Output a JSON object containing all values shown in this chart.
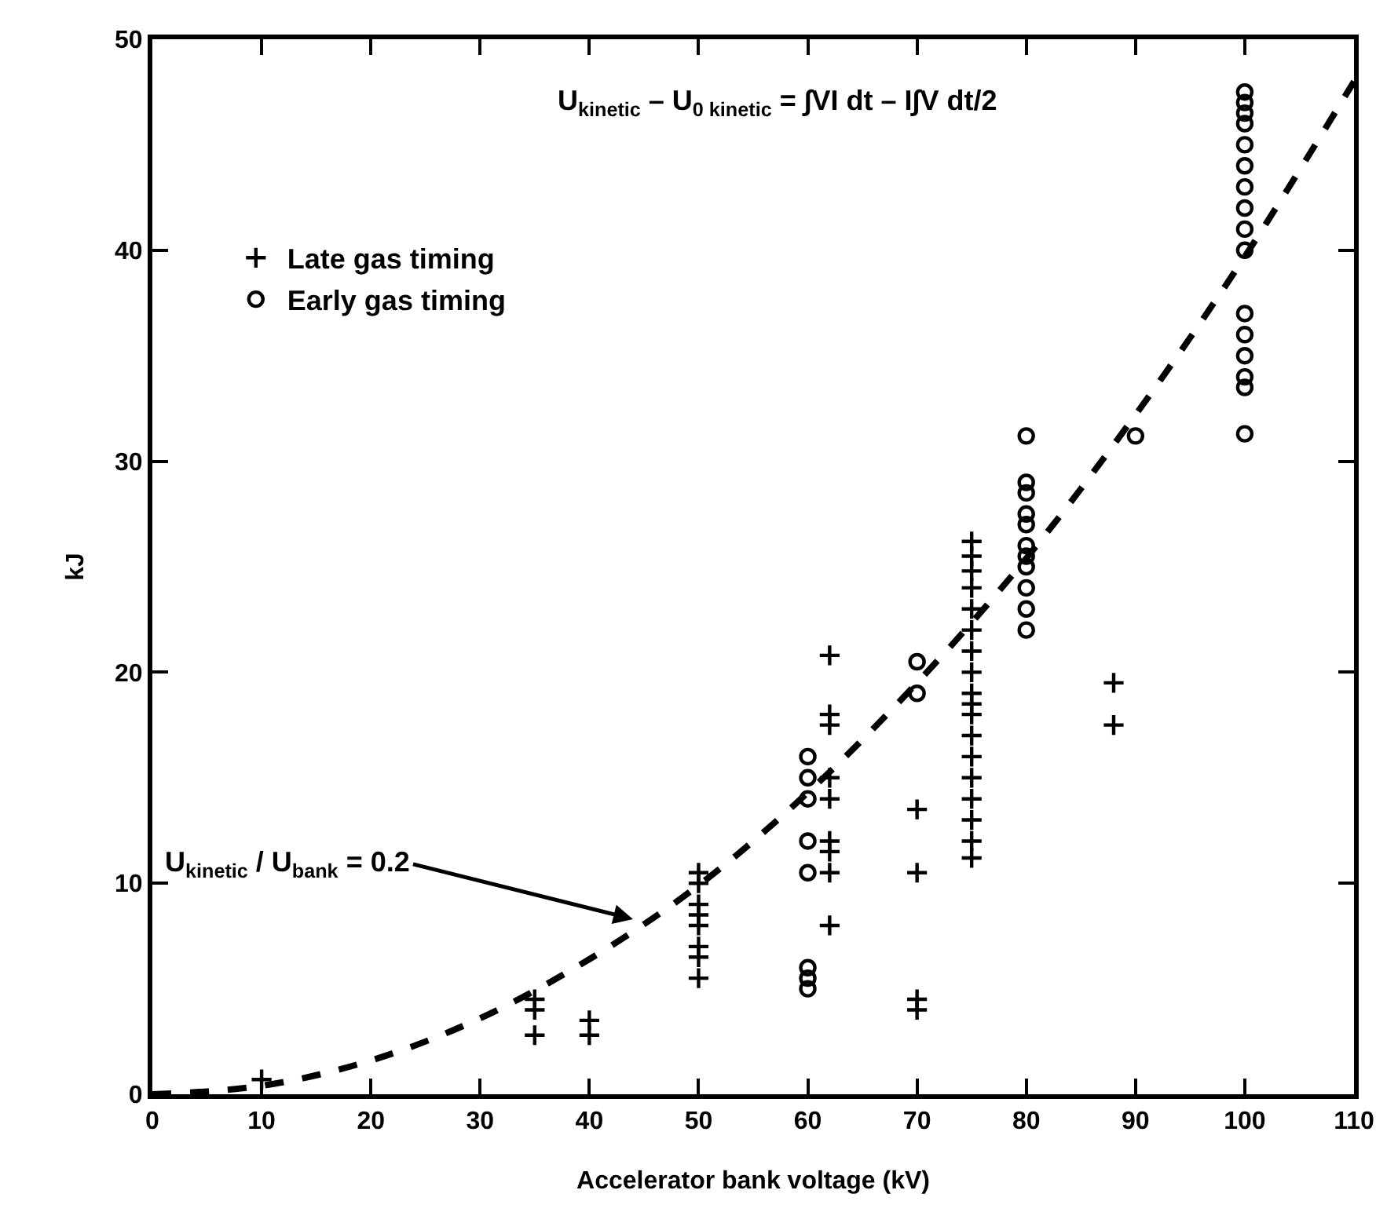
{
  "chart_data": {
    "type": "scatter",
    "xlabel": "Accelerator bank voltage (kV)",
    "ylabel": "kJ",
    "xlim": [
      0,
      110
    ],
    "ylim": [
      0,
      50
    ],
    "xticks": [
      0,
      10,
      20,
      30,
      40,
      50,
      60,
      70,
      80,
      90,
      100,
      110
    ],
    "yticks": [
      0,
      10,
      20,
      30,
      40,
      50
    ],
    "grid": false,
    "legend": "top left",
    "series": [
      {
        "name": "Late gas timing",
        "color": "#000000",
        "marker": "cross",
        "x": [
          10,
          35,
          35,
          35,
          40,
          40,
          50,
          50,
          50,
          50,
          50,
          50,
          50,
          50,
          62,
          62,
          62,
          62,
          62,
          62,
          62,
          62,
          62,
          70,
          70,
          70,
          70,
          75,
          75,
          75,
          75,
          75,
          75,
          75,
          75,
          75,
          75,
          75,
          75,
          75,
          75,
          75,
          75,
          75,
          75,
          88,
          88
        ],
        "values": [
          0.7,
          4.5,
          4,
          2.8,
          3.5,
          2.8,
          10.5,
          10,
          9,
          8.5,
          8,
          7,
          6.5,
          5.5,
          20.8,
          18,
          17.5,
          15,
          14,
          12,
          11.5,
          10.5,
          8,
          13.5,
          10.5,
          4.5,
          4,
          26.2,
          25.5,
          24.8,
          24,
          23,
          22,
          21,
          20,
          19,
          18.5,
          18,
          17,
          16,
          15,
          14,
          13,
          12,
          11.2,
          19.5,
          17.5
        ]
      },
      {
        "name": "Early gas timing",
        "color": "#000000",
        "marker": "circle",
        "x": [
          60,
          60,
          60,
          60,
          60,
          60,
          60,
          60,
          70,
          70,
          80,
          80,
          80,
          80,
          80,
          80,
          80,
          80,
          80,
          80,
          80,
          90,
          100,
          100,
          100,
          100,
          100,
          100,
          100,
          100,
          100,
          100,
          100,
          100,
          100,
          100,
          100,
          100
        ],
        "values": [
          16,
          15,
          14,
          12,
          10.5,
          6,
          5.5,
          5,
          20.5,
          19,
          31.2,
          29,
          28.5,
          27.5,
          27,
          26,
          25.5,
          25,
          24,
          23,
          22,
          31.2,
          47.5,
          47,
          46.5,
          46,
          45,
          44,
          43,
          42,
          41,
          40,
          37,
          36,
          35,
          34,
          33.5,
          31.3
        ]
      },
      {
        "type": "line",
        "color": "#000000",
        "marker": "none",
        "line_style": "dashed",
        "x": [
          0,
          10,
          20,
          30,
          40,
          50,
          60,
          70,
          80,
          90,
          100,
          110
        ],
        "values": [
          0,
          0.4,
          1.6,
          3.6,
          6.4,
          9.9,
          14.3,
          19.5,
          25.4,
          32.2,
          39.7,
          48.0
        ]
      }
    ],
    "annotations": [
      "U$_{kinetic}$ – U$_{0 kinetic}$ = ∫VI dt – I∫V dt/2",
      {
        "text": "U$_{kinetic}$ / U$_{bank}$ = 0.2",
        "x": 44,
        "y": 8.3
      }
    ]
  }
}
